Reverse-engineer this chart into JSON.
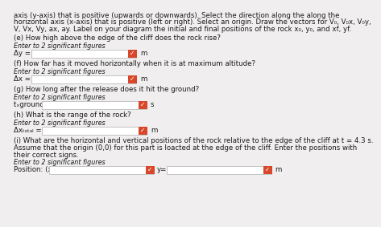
{
  "bg_color": "#f0eeee",
  "text_color": "#1a1a1a",
  "header_lines": [
    "axis (y-axis) that is positive (upwards or downwards). Select the direction along the along the",
    "horizontal axis (x-axis) that is positive (left or right). Select an origin. Draw the vectors for V₀, V₀x, V₀y,",
    "V, Vx, Vy, ax, ay. Label on your diagram the initial and final positions of the rock x₀, y₀, and xf, yf."
  ],
  "sections": [
    {
      "label": "(e) How high above the edge of the cliff does the rock rise?",
      "sub": "Enter to 2 significant figures",
      "field_label": "Δy =",
      "unit": "m"
    },
    {
      "label": "(f) How far has it moved horizontally when it is at maximum altitude?",
      "sub": "Enter to 2 significant figures",
      "field_label": "Δx =",
      "unit": "m"
    },
    {
      "label": "(g) How long after the release does it hit the ground?",
      "sub": "Enter to 2 significant figures",
      "field_label": "tₓground =",
      "unit": "s"
    },
    {
      "label": "(h) What is the range of the rock?",
      "sub": "Enter to 2 significant figures",
      "field_label": "Δxₜₒₜₐₗ =",
      "unit": "m"
    }
  ],
  "last_section": {
    "label_lines": [
      "(i) What are the horizontal and vertical positions of the rock relative to the edge of the cliff at t = 4.3 s.",
      "Assume that the origin (0,0) for this part is loacted at the edge of the cliff. Enter the positions with",
      "their correct signs."
    ],
    "sub": "Enter to 2 significant figures",
    "field_label_x": "Position: (x=",
    "field_label_y": "y=",
    "unit": "m"
  },
  "check_color": "#d9472b",
  "field_bg": "#ffffff",
  "field_border": "#bbbbbb"
}
